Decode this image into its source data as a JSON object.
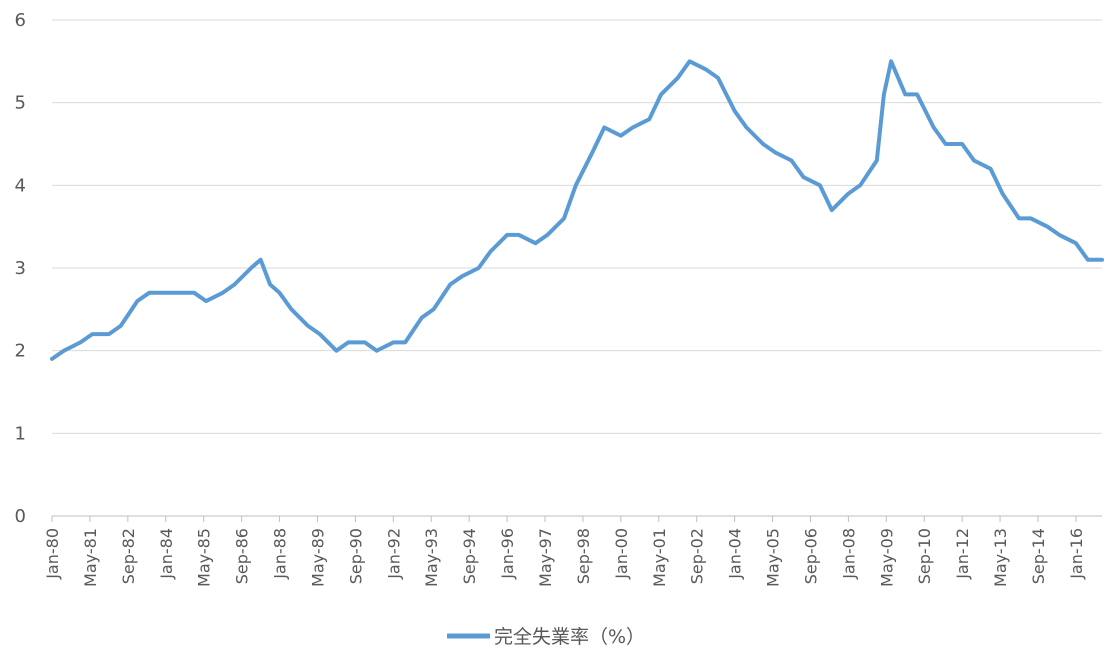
{
  "chart_data": {
    "type": "line",
    "title": "",
    "xlabel": "",
    "ylabel": "",
    "ylim": [
      0,
      6
    ],
    "yticks": [
      "0",
      "1",
      "2",
      "3",
      "4",
      "5",
      "6"
    ],
    "x_tick_labels": [
      "Jan-80",
      "May-81",
      "Sep-82",
      "Jan-84",
      "May-85",
      "Sep-86",
      "Jan-88",
      "May-89",
      "Sep-90",
      "Jan-92",
      "May-93",
      "Sep-94",
      "Jan-96",
      "May-97",
      "Sep-98",
      "Jan-00",
      "May-01",
      "Sep-02",
      "Jan-04",
      "May-05",
      "Sep-06",
      "Jan-08",
      "May-09",
      "Sep-10",
      "Jan-12",
      "May-13",
      "Sep-14",
      "Jan-16"
    ],
    "x_start": "1980-01",
    "x_end": "2016-12",
    "x_tick_step_months": 16,
    "grid": true,
    "legend_position": "bottom",
    "series": [
      {
        "name": "完全失業率（%）",
        "color": "#5b9bd5",
        "x": [
          "1980-01",
          "1980-06",
          "1981-01",
          "1981-06",
          "1982-01",
          "1982-06",
          "1983-01",
          "1983-06",
          "1984-01",
          "1984-06",
          "1985-01",
          "1985-06",
          "1986-01",
          "1986-06",
          "1987-01",
          "1987-05",
          "1987-09",
          "1988-01",
          "1988-06",
          "1989-01",
          "1989-06",
          "1990-01",
          "1990-06",
          "1991-01",
          "1991-06",
          "1992-01",
          "1992-06",
          "1993-01",
          "1993-06",
          "1994-01",
          "1994-06",
          "1995-01",
          "1995-06",
          "1996-01",
          "1996-06",
          "1997-01",
          "1997-06",
          "1998-01",
          "1998-06",
          "1999-01",
          "1999-06",
          "2000-01",
          "2000-06",
          "2001-01",
          "2001-06",
          "2002-01",
          "2002-06",
          "2003-01",
          "2003-06",
          "2004-01",
          "2004-06",
          "2005-01",
          "2005-06",
          "2006-01",
          "2006-06",
          "2007-01",
          "2007-06",
          "2008-01",
          "2008-06",
          "2009-01",
          "2009-04",
          "2009-07",
          "2010-01",
          "2010-06",
          "2011-01",
          "2011-06",
          "2012-01",
          "2012-06",
          "2013-01",
          "2013-06",
          "2014-01",
          "2014-06",
          "2015-01",
          "2015-06",
          "2016-01",
          "2016-06",
          "2016-12"
        ],
        "y": [
          1.9,
          2.0,
          2.1,
          2.2,
          2.2,
          2.3,
          2.6,
          2.7,
          2.7,
          2.7,
          2.7,
          2.6,
          2.7,
          2.8,
          3.0,
          3.1,
          2.8,
          2.7,
          2.5,
          2.3,
          2.2,
          2.0,
          2.1,
          2.1,
          2.0,
          2.1,
          2.1,
          2.4,
          2.5,
          2.8,
          2.9,
          3.0,
          3.2,
          3.4,
          3.4,
          3.3,
          3.4,
          3.6,
          4.0,
          4.4,
          4.7,
          4.6,
          4.7,
          4.8,
          5.1,
          5.3,
          5.5,
          5.4,
          5.3,
          4.9,
          4.7,
          4.5,
          4.4,
          4.3,
          4.1,
          4.0,
          3.7,
          3.9,
          4.0,
          4.3,
          5.1,
          5.5,
          5.1,
          5.1,
          4.7,
          4.5,
          4.5,
          4.3,
          4.2,
          3.9,
          3.6,
          3.6,
          3.5,
          3.4,
          3.3,
          3.1,
          3.1
        ]
      }
    ]
  }
}
